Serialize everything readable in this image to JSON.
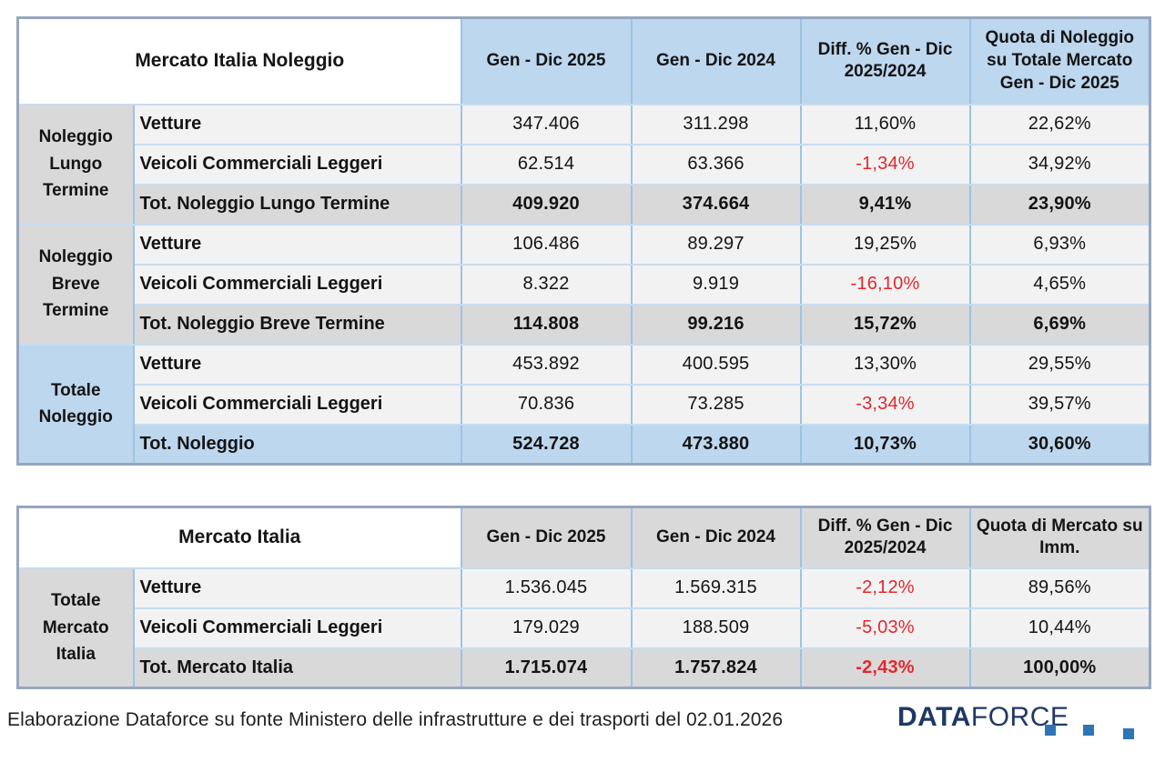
{
  "chart_data": [
    {
      "type": "table",
      "title": "Mercato Italia Noleggio",
      "header_tone": "blue",
      "columns": [
        "Gen - Dic 2025",
        "Gen - Dic 2024",
        "Diff. % Gen - Dic 2025/2024",
        "Quota di Noleggio su Totale Mercato Gen - Dic 2025"
      ],
      "groups": [
        {
          "label": "Noleggio Lungo Termine",
          "tone": "gray",
          "rows": [
            {
              "label": "Vetture",
              "values": [
                "347.406",
                "311.298",
                "11,60%",
                "22,62%"
              ],
              "total": false
            },
            {
              "label": "Veicoli Commerciali Leggeri",
              "values": [
                "62.514",
                "63.366",
                "-1,34%",
                "34,92%"
              ],
              "total": false
            },
            {
              "label": "Tot. Noleggio Lungo Termine",
              "values": [
                "409.920",
                "374.664",
                "9,41%",
                "23,90%"
              ],
              "total": true,
              "tone": "gray"
            }
          ]
        },
        {
          "label": "Noleggio Breve Termine",
          "tone": "gray",
          "rows": [
            {
              "label": "Vetture",
              "values": [
                "106.486",
                "89.297",
                "19,25%",
                "6,93%"
              ],
              "total": false
            },
            {
              "label": "Veicoli Commerciali Leggeri",
              "values": [
                "8.322",
                "9.919",
                "-16,10%",
                "4,65%"
              ],
              "total": false
            },
            {
              "label": "Tot. Noleggio Breve Termine",
              "values": [
                "114.808",
                "99.216",
                "15,72%",
                "6,69%"
              ],
              "total": true,
              "tone": "gray"
            }
          ]
        },
        {
          "label": "Totale Noleggio",
          "tone": "blue",
          "rows": [
            {
              "label": "Vetture",
              "values": [
                "453.892",
                "400.595",
                "13,30%",
                "29,55%"
              ],
              "total": false
            },
            {
              "label": "Veicoli Commerciali Leggeri",
              "values": [
                "70.836",
                "73.285",
                "-3,34%",
                "39,57%"
              ],
              "total": false
            },
            {
              "label": "Tot. Noleggio",
              "values": [
                "524.728",
                "473.880",
                "10,73%",
                "30,60%"
              ],
              "total": true,
              "tone": "blue"
            }
          ]
        }
      ]
    },
    {
      "type": "table",
      "title": "Mercato Italia",
      "header_tone": "gray",
      "columns": [
        "Gen - Dic 2025",
        "Gen - Dic 2024",
        "Diff. % Gen - Dic 2025/2024",
        "Quota di Mercato su Imm."
      ],
      "groups": [
        {
          "label": "Totale Mercato Italia",
          "tone": "gray",
          "rows": [
            {
              "label": "Vetture",
              "values": [
                "1.536.045",
                "1.569.315",
                "-2,12%",
                "89,56%"
              ],
              "total": false
            },
            {
              "label": "Veicoli Commerciali Leggeri",
              "values": [
                "179.029",
                "188.509",
                "-5,03%",
                "10,44%"
              ],
              "total": false
            },
            {
              "label": "Tot. Mercato Italia",
              "values": [
                "1.715.074",
                "1.757.824",
                "-2,43%",
                "100,00%"
              ],
              "total": true,
              "tone": "gray"
            }
          ]
        }
      ]
    }
  ],
  "colors": {
    "header_blue": "#BDD7EE",
    "gray": "#D9D9D9",
    "row_light": "#F2F2F2",
    "negative_red": "#E2282E",
    "logo_navy": "#1F3864",
    "logo_square_blue": "#2E75B6"
  },
  "footer": {
    "text": "Elaborazione Dataforce su fonte Ministero delle infrastrutture e dei trasporti del 02.01.2026",
    "logo": {
      "bold_part": "DATA",
      "light_part": "FORCE"
    }
  }
}
